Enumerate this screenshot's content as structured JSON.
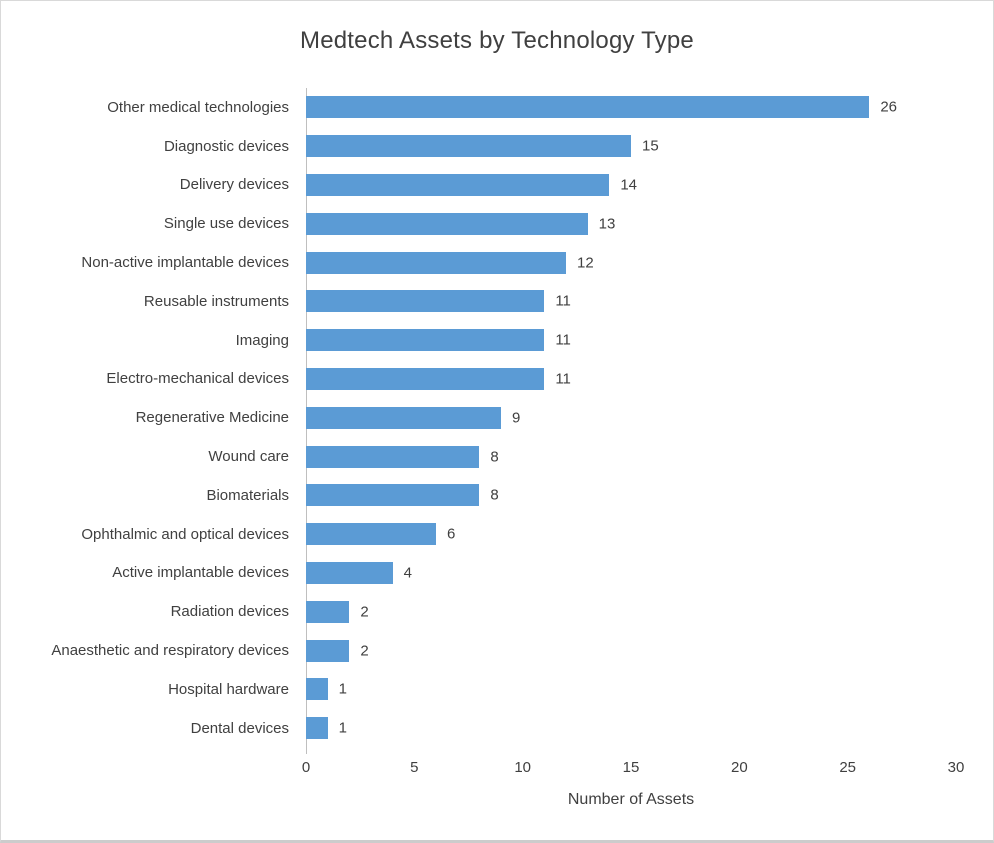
{
  "chart_data": {
    "type": "bar",
    "orientation": "horizontal",
    "title": "Medtech Assets by Technology Type",
    "xlabel": "Number of Assets",
    "ylabel": "",
    "categories": [
      "Other medical technologies",
      "Diagnostic devices",
      "Delivery devices",
      "Single use devices",
      "Non-active implantable devices",
      "Reusable instruments",
      "Imaging",
      "Electro-mechanical devices",
      "Regenerative Medicine",
      "Wound care",
      "Biomaterials",
      "Ophthalmic and optical devices",
      "Active implantable devices",
      "Radiation devices",
      "Anaesthetic and respiratory devices",
      "Hospital hardware",
      "Dental devices"
    ],
    "values": [
      26,
      15,
      14,
      13,
      12,
      11,
      11,
      11,
      9,
      8,
      8,
      6,
      4,
      2,
      2,
      1,
      1
    ],
    "xlim": [
      0,
      30
    ],
    "xticks": [
      0,
      5,
      10,
      15,
      20,
      25,
      30
    ],
    "grid": false,
    "legend": null,
    "data_labels": true,
    "bar_color": "#5B9BD5",
    "text_color": "#404040",
    "axis_line_color": "#BFBFBF"
  }
}
